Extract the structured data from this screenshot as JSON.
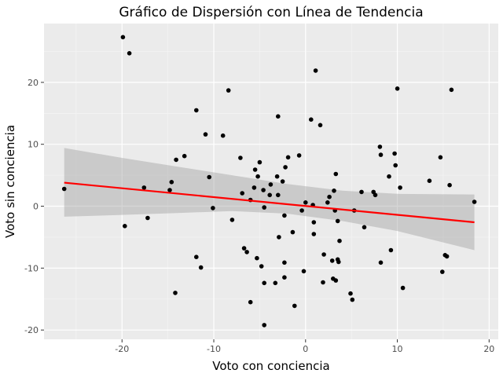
{
  "chart_data": {
    "type": "scatter",
    "title": "Gráfico de Dispersión con Línea de Tendencia",
    "xlabel": "Voto con conciencia",
    "ylabel": "Voto sin conciencia",
    "xlim": [
      -28.5,
      21.0
    ],
    "ylim": [
      -21.5,
      29.5
    ],
    "x_ticks": [
      -20,
      -10,
      0,
      10,
      20
    ],
    "y_ticks": [
      -20,
      -10,
      0,
      10,
      20
    ],
    "x_tick_labels": [
      "-20",
      "-10",
      "0",
      "10",
      "20"
    ],
    "y_tick_labels": [
      "-20",
      "-10",
      "0",
      "10",
      "20"
    ],
    "grid": true,
    "background": "#ebebeb",
    "point_color": "#000000",
    "line_color": "#ff0000",
    "band_color": "#999999",
    "points": [
      {
        "x": -26.3,
        "y": 2.8
      },
      {
        "x": -19.9,
        "y": 27.3
      },
      {
        "x": -19.2,
        "y": 24.7
      },
      {
        "x": -19.7,
        "y": -3.2
      },
      {
        "x": -17.6,
        "y": 3.0
      },
      {
        "x": -17.2,
        "y": -1.9
      },
      {
        "x": -14.8,
        "y": 2.6
      },
      {
        "x": -14.6,
        "y": 3.9
      },
      {
        "x": -14.1,
        "y": 7.5
      },
      {
        "x": -14.2,
        "y": -14.0
      },
      {
        "x": -13.2,
        "y": 8.1
      },
      {
        "x": -11.9,
        "y": 15.5
      },
      {
        "x": -11.9,
        "y": -8.2
      },
      {
        "x": -11.4,
        "y": -9.9
      },
      {
        "x": -10.9,
        "y": 11.6
      },
      {
        "x": -10.5,
        "y": 4.7
      },
      {
        "x": -10.1,
        "y": -0.3
      },
      {
        "x": -9.0,
        "y": 11.4
      },
      {
        "x": -8.4,
        "y": 18.7
      },
      {
        "x": -8.0,
        "y": -2.2
      },
      {
        "x": -7.1,
        "y": 7.8
      },
      {
        "x": -6.9,
        "y": 2.1
      },
      {
        "x": -6.7,
        "y": -6.8
      },
      {
        "x": -6.4,
        "y": -7.4
      },
      {
        "x": -6.0,
        "y": -15.5
      },
      {
        "x": -6.0,
        "y": 1.0
      },
      {
        "x": -5.6,
        "y": 3.0
      },
      {
        "x": -5.5,
        "y": 5.9
      },
      {
        "x": -5.3,
        "y": -8.4
      },
      {
        "x": -5.2,
        "y": 4.8
      },
      {
        "x": -5.0,
        "y": 7.1
      },
      {
        "x": -4.8,
        "y": -9.7
      },
      {
        "x": -4.6,
        "y": 2.6
      },
      {
        "x": -4.5,
        "y": -0.2
      },
      {
        "x": -4.5,
        "y": -12.4
      },
      {
        "x": -4.5,
        "y": -19.2
      },
      {
        "x": -3.9,
        "y": 1.8
      },
      {
        "x": -3.8,
        "y": 3.5
      },
      {
        "x": -3.3,
        "y": -12.4
      },
      {
        "x": -3.1,
        "y": 4.8
      },
      {
        "x": -3.0,
        "y": 1.8
      },
      {
        "x": -3.0,
        "y": 14.5
      },
      {
        "x": -2.9,
        "y": -5.0
      },
      {
        "x": -2.5,
        "y": 4.0
      },
      {
        "x": -2.3,
        "y": -1.5
      },
      {
        "x": -2.3,
        "y": -11.5
      },
      {
        "x": -2.3,
        "y": -9.1
      },
      {
        "x": -2.2,
        "y": 6.3
      },
      {
        "x": -1.9,
        "y": 7.9
      },
      {
        "x": -1.4,
        "y": -4.2
      },
      {
        "x": -1.2,
        "y": -16.1
      },
      {
        "x": -0.7,
        "y": 8.2
      },
      {
        "x": -0.4,
        "y": -0.7
      },
      {
        "x": -0.2,
        "y": -10.5
      },
      {
        "x": 0.0,
        "y": 0.6
      },
      {
        "x": 0.6,
        "y": 14.0
      },
      {
        "x": 0.8,
        "y": 0.2
      },
      {
        "x": 0.9,
        "y": -2.6
      },
      {
        "x": 0.9,
        "y": -4.5
      },
      {
        "x": 1.1,
        "y": 21.9
      },
      {
        "x": 1.6,
        "y": 13.1
      },
      {
        "x": 1.9,
        "y": -12.3
      },
      {
        "x": 2.0,
        "y": -7.8
      },
      {
        "x": 2.4,
        "y": 0.6
      },
      {
        "x": 2.6,
        "y": 1.5
      },
      {
        "x": 2.9,
        "y": -8.8
      },
      {
        "x": 3.0,
        "y": -11.7
      },
      {
        "x": 3.1,
        "y": 2.5
      },
      {
        "x": 3.2,
        "y": -0.7
      },
      {
        "x": 3.3,
        "y": -12.0
      },
      {
        "x": 3.3,
        "y": 5.2
      },
      {
        "x": 3.5,
        "y": -8.6
      },
      {
        "x": 3.5,
        "y": -2.4
      },
      {
        "x": 3.6,
        "y": -9.0
      },
      {
        "x": 3.7,
        "y": -5.6
      },
      {
        "x": 4.9,
        "y": -14.1
      },
      {
        "x": 5.1,
        "y": -15.1
      },
      {
        "x": 5.3,
        "y": -0.7
      },
      {
        "x": 6.1,
        "y": 2.3
      },
      {
        "x": 6.4,
        "y": -3.4
      },
      {
        "x": 7.4,
        "y": 2.3
      },
      {
        "x": 7.6,
        "y": 1.8
      },
      {
        "x": 8.1,
        "y": 9.6
      },
      {
        "x": 8.2,
        "y": 8.3
      },
      {
        "x": 8.2,
        "y": -9.1
      },
      {
        "x": 9.1,
        "y": 4.8
      },
      {
        "x": 9.3,
        "y": -7.1
      },
      {
        "x": 9.7,
        "y": 8.5
      },
      {
        "x": 9.8,
        "y": 6.6
      },
      {
        "x": 10.0,
        "y": 19.0
      },
      {
        "x": 10.3,
        "y": 3.0
      },
      {
        "x": 10.6,
        "y": -13.2
      },
      {
        "x": 13.5,
        "y": 4.1
      },
      {
        "x": 14.7,
        "y": 7.9
      },
      {
        "x": 14.9,
        "y": -10.6
      },
      {
        "x": 15.2,
        "y": -7.9
      },
      {
        "x": 15.4,
        "y": -8.1
      },
      {
        "x": 15.7,
        "y": 3.4
      },
      {
        "x": 15.9,
        "y": 18.8
      },
      {
        "x": 18.4,
        "y": 0.7
      }
    ],
    "trend": {
      "x": [
        -26.3,
        18.4
      ],
      "y": [
        3.8,
        -2.6
      ]
    },
    "confidence_band": {
      "x": [
        -26.3,
        -20.0,
        -14.0,
        -8.0,
        -2.0,
        4.0,
        10.0,
        18.4
      ],
      "upper": [
        9.4,
        7.8,
        6.4,
        5.0,
        3.6,
        2.5,
        2.0,
        1.9
      ],
      "lower": [
        -1.7,
        -1.4,
        -1.1,
        -0.8,
        -1.2,
        -2.4,
        -4.0,
        -7.1
      ]
    }
  }
}
